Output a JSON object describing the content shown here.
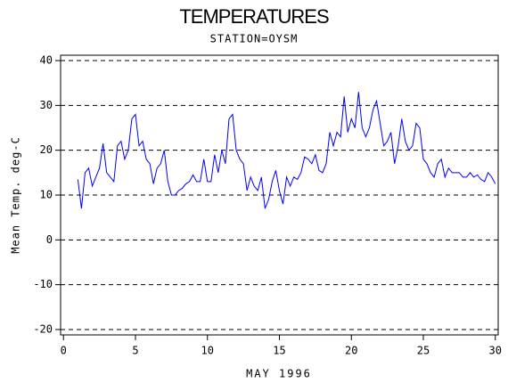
{
  "chart_data": {
    "type": "line",
    "title": "TEMPERATURES",
    "subtitle": "STATION=OYSM",
    "x_label": "MAY 1996",
    "y_label": "Mean Temp. deg-C",
    "color": "#0000ff",
    "grid": true,
    "xlim": [
      -0.2,
      30.2
    ],
    "ylim": [
      -21.2,
      41.2
    ],
    "xticks": [
      0,
      5,
      10,
      15,
      20,
      25,
      30
    ],
    "yticks": [
      -20,
      -10,
      0,
      10,
      20,
      30,
      40
    ],
    "x": [
      1,
      1.25,
      1.5,
      1.75,
      2,
      2.25,
      2.5,
      2.75,
      3,
      3.25,
      3.5,
      3.75,
      4,
      4.25,
      4.5,
      4.75,
      5,
      5.25,
      5.5,
      5.75,
      6,
      6.25,
      6.5,
      6.75,
      7,
      7.25,
      7.5,
      7.75,
      8,
      8.25,
      8.5,
      8.75,
      9,
      9.25,
      9.5,
      9.75,
      10,
      10.25,
      10.5,
      10.75,
      11,
      11.25,
      11.5,
      11.75,
      12,
      12.25,
      12.5,
      12.75,
      13,
      13.25,
      13.5,
      13.75,
      14,
      14.25,
      14.5,
      14.75,
      15,
      15.25,
      15.5,
      15.75,
      16,
      16.25,
      16.5,
      16.75,
      17,
      17.25,
      17.5,
      17.75,
      18,
      18.25,
      18.5,
      18.75,
      19,
      19.25,
      19.5,
      19.75,
      20,
      20.25,
      20.5,
      20.75,
      21,
      21.25,
      21.5,
      21.75,
      22,
      22.25,
      22.5,
      22.75,
      23,
      23.25,
      23.5,
      23.75,
      24,
      24.25,
      24.5,
      24.75,
      25,
      25.25,
      25.5,
      25.75,
      26,
      26.25,
      26.5,
      26.75,
      27,
      27.25,
      27.5,
      27.75,
      28,
      28.25,
      28.5,
      28.75,
      29,
      29.25,
      29.5,
      29.75,
      30
    ],
    "values": [
      13.5,
      7,
      15,
      16,
      12,
      14,
      16,
      21.5,
      15,
      14,
      13,
      21,
      22,
      18,
      20,
      27,
      28,
      21,
      22,
      18,
      17,
      12.5,
      16,
      17,
      20,
      13,
      10,
      10,
      11,
      11.5,
      12.5,
      13,
      14.5,
      13,
      13,
      18,
      13,
      13,
      19,
      15,
      20,
      17,
      27,
      28,
      20,
      18,
      17,
      11,
      14,
      12,
      11,
      14,
      7,
      9,
      13,
      15.5,
      11,
      8,
      14,
      12,
      14,
      13.5,
      15,
      18.5,
      18,
      17,
      19,
      15.5,
      15,
      17,
      24,
      21,
      24,
      23,
      32,
      24,
      27,
      25,
      33,
      25,
      23,
      25,
      29,
      31,
      26,
      21,
      22,
      24,
      17,
      21,
      27,
      22,
      20,
      21,
      26,
      25,
      18,
      17,
      15,
      14,
      17,
      18,
      14,
      16,
      15,
      15,
      15,
      14,
      14,
      15,
      14,
      14.5,
      13.5,
      13,
      15,
      14,
      12.5
    ]
  }
}
